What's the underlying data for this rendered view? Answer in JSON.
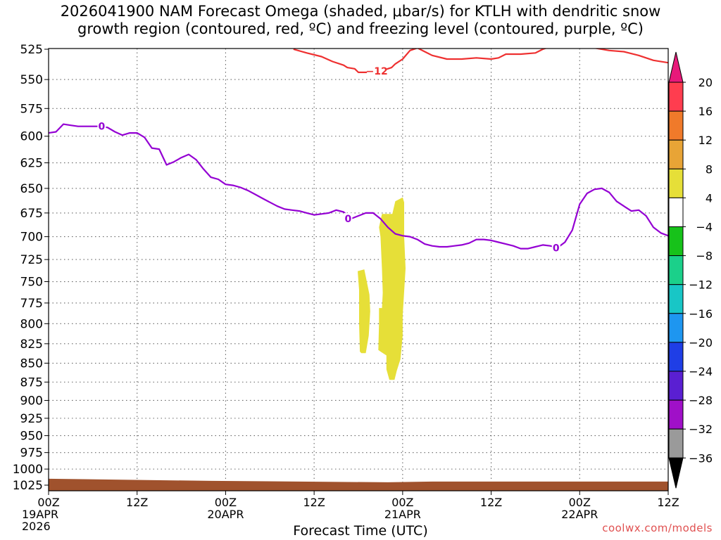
{
  "title": {
    "line1": "2026041900 NAM Forecast Omega (shaded, μbar/s) for KTLH with dendritic snow",
    "line2": "growth region (contoured, red, ºC) and freezing level (contoured, purple, ºC)"
  },
  "credit": "coolwx.com/models",
  "chart_data": {
    "type": "time-height cross section",
    "x_title": "Forecast Time (UTC)",
    "x_range_hours": [
      0,
      84
    ],
    "x_ticks": [
      {
        "hour": 0,
        "label": "00Z",
        "date": "19APR",
        "year": "2026"
      },
      {
        "hour": 12,
        "label": "12Z",
        "date": "",
        "year": ""
      },
      {
        "hour": 24,
        "label": "00Z",
        "date": "20APR",
        "year": ""
      },
      {
        "hour": 36,
        "label": "12Z",
        "date": "",
        "year": ""
      },
      {
        "hour": 48,
        "label": "00Z",
        "date": "21APR",
        "year": ""
      },
      {
        "hour": 60,
        "label": "12Z",
        "date": "",
        "year": ""
      },
      {
        "hour": 72,
        "label": "00Z",
        "date": "22APR",
        "year": ""
      },
      {
        "hour": 84,
        "label": "12Z",
        "date": "",
        "year": ""
      }
    ],
    "y_axis": "Pressure (hPa), log scale, inverted",
    "y_range_hpa": [
      525,
      1040
    ],
    "y_ticks": [
      525,
      550,
      575,
      600,
      625,
      650,
      675,
      700,
      725,
      750,
      775,
      800,
      825,
      850,
      875,
      900,
      925,
      950,
      975,
      1000,
      1025
    ],
    "grid": "dotted",
    "colorbar": {
      "labels": [
        "20",
        "16",
        "12",
        "8",
        "4",
        "−4",
        "−8",
        "−12",
        "−16",
        "−20",
        "−24",
        "−28",
        "−32",
        "−36"
      ],
      "colors": [
        "#ff3d4f",
        "#f07a2a",
        "#e8a436",
        "#e6df38",
        "#ffffff",
        "#17c21a",
        "#1bd08a",
        "#18c6c6",
        "#1e96f0",
        "#1f3ee6",
        "#5a1fd2",
        "#a010c8",
        "#9a9a9a"
      ],
      "top_arrow_color": "#e8197a",
      "bottom_arrow_color": "#000000"
    },
    "series": [
      {
        "name": "freezing level 0 °C",
        "color": "#9400d3",
        "label": "0",
        "label_hours": [
          7.2,
          40.6,
          68.8
        ],
        "points": [
          [
            0,
            597
          ],
          [
            1,
            596
          ],
          [
            2,
            589
          ],
          [
            3,
            590
          ],
          [
            4,
            591
          ],
          [
            5,
            591
          ],
          [
            6,
            591
          ],
          [
            7,
            591
          ],
          [
            8,
            592
          ],
          [
            9,
            596
          ],
          [
            10,
            599
          ],
          [
            11,
            597
          ],
          [
            12,
            597
          ],
          [
            13,
            601
          ],
          [
            14,
            611
          ],
          [
            15,
            612
          ],
          [
            16,
            627
          ],
          [
            17,
            624
          ],
          [
            18,
            620
          ],
          [
            19,
            617
          ],
          [
            20,
            622
          ],
          [
            21,
            631
          ],
          [
            22,
            639
          ],
          [
            23,
            641
          ],
          [
            24,
            646
          ],
          [
            25,
            647
          ],
          [
            26,
            649
          ],
          [
            27,
            652
          ],
          [
            28,
            656
          ],
          [
            29,
            660
          ],
          [
            30,
            664
          ],
          [
            31,
            668
          ],
          [
            32,
            671
          ],
          [
            33,
            672
          ],
          [
            34,
            673
          ],
          [
            35,
            675
          ],
          [
            36,
            677
          ],
          [
            37,
            676
          ],
          [
            38,
            675
          ],
          [
            39,
            672
          ],
          [
            40,
            674
          ],
          [
            41,
            681
          ],
          [
            42,
            678
          ],
          [
            43,
            675
          ],
          [
            44,
            675
          ],
          [
            45,
            681
          ],
          [
            46,
            690
          ],
          [
            47,
            697
          ],
          [
            48,
            699
          ],
          [
            49,
            700
          ],
          [
            50,
            703
          ],
          [
            51,
            708
          ],
          [
            52,
            710
          ],
          [
            53,
            711
          ],
          [
            54,
            711
          ],
          [
            55,
            710
          ],
          [
            56,
            709
          ],
          [
            57,
            707
          ],
          [
            58,
            703
          ],
          [
            59,
            703
          ],
          [
            60,
            704
          ],
          [
            61,
            706
          ],
          [
            62,
            708
          ],
          [
            63,
            710
          ],
          [
            64,
            713
          ],
          [
            65,
            713
          ],
          [
            66,
            711
          ],
          [
            67,
            709
          ],
          [
            68,
            710
          ],
          [
            69,
            712
          ],
          [
            70,
            706
          ],
          [
            71,
            693
          ],
          [
            72,
            666
          ],
          [
            73,
            655
          ],
          [
            74,
            651
          ],
          [
            75,
            650
          ],
          [
            76,
            654
          ],
          [
            77,
            663
          ],
          [
            78,
            668
          ],
          [
            79,
            673
          ],
          [
            80,
            672
          ],
          [
            81,
            678
          ],
          [
            82,
            690
          ],
          [
            83,
            696
          ],
          [
            84,
            699
          ]
        ]
      },
      {
        "name": "dendritic growth −12 °C",
        "color": "#ee3030",
        "label": "−12",
        "label_hours": [
          44.5
        ],
        "points": [
          [
            33.2,
            525
          ],
          [
            35,
            528
          ],
          [
            37,
            531
          ],
          [
            38.5,
            535
          ],
          [
            40,
            538
          ],
          [
            40.5,
            540
          ],
          [
            41.5,
            541
          ],
          [
            42,
            544
          ],
          [
            43,
            544
          ],
          [
            45,
            543
          ],
          [
            46.5,
            540
          ],
          [
            47,
            537
          ],
          [
            48,
            533
          ],
          [
            49,
            526
          ],
          [
            50,
            524
          ],
          [
            51,
            527
          ],
          [
            52,
            530
          ],
          [
            54,
            533
          ],
          [
            56,
            533
          ],
          [
            58,
            532
          ],
          [
            60,
            533
          ],
          [
            61,
            532
          ],
          [
            62,
            529
          ],
          [
            64,
            529
          ],
          [
            66,
            528
          ],
          [
            67,
            525
          ],
          [
            68,
            523
          ],
          [
            74,
            524
          ],
          [
            76,
            526
          ],
          [
            78,
            527
          ],
          [
            80,
            530
          ],
          [
            82,
            534
          ],
          [
            84,
            536
          ]
        ]
      }
    ],
    "shaded_regions": [
      {
        "name": "omega 4-8 upper",
        "range": "4 to 8",
        "color": "#e6df38",
        "points": [
          [
            45.2,
            676
          ],
          [
            46.6,
            676
          ],
          [
            47,
            663
          ],
          [
            48,
            659
          ],
          [
            48.2,
            664
          ],
          [
            48.2,
            700
          ],
          [
            48.4,
            735
          ],
          [
            48,
            790
          ],
          [
            48,
            815
          ],
          [
            47.7,
            845
          ],
          [
            47.2,
            860
          ],
          [
            46.9,
            872
          ],
          [
            46.2,
            872
          ],
          [
            45.8,
            858
          ],
          [
            45.8,
            840
          ],
          [
            45,
            835
          ],
          [
            44.7,
            833
          ],
          [
            44.8,
            800
          ],
          [
            44.8,
            781
          ],
          [
            45.2,
            781
          ],
          [
            45.3,
            763
          ],
          [
            45.2,
            736
          ],
          [
            45,
            700
          ],
          [
            44.8,
            690
          ]
        ]
      },
      {
        "name": "omega 4-8 lower",
        "range": "4 to 8",
        "color": "#e6df38",
        "points": [
          [
            41.9,
            738
          ],
          [
            42.8,
            736
          ],
          [
            43.5,
            765
          ],
          [
            43.6,
            785
          ],
          [
            43.4,
            815
          ],
          [
            43.0,
            837
          ],
          [
            42.4,
            837
          ],
          [
            42.2,
            835
          ],
          [
            42.1,
            800
          ],
          [
            42.1,
            760
          ]
        ]
      }
    ],
    "terrain": {
      "color": "#a0522d",
      "top_hpa": 1015
    }
  }
}
